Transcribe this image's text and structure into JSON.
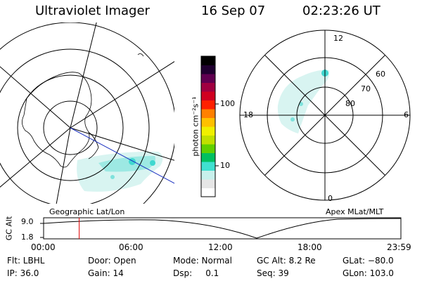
{
  "header": {
    "instrument": "Ultraviolet Imager",
    "date": "16 Sep 07",
    "time": "02:23:26 UT"
  },
  "colorbar": {
    "unit": "photon cm⁻²s⁻¹",
    "ticks": [
      "100",
      "10"
    ],
    "colors": [
      "#ffffff",
      "#e6e6e6",
      "#c8f0ec",
      "#40e0d0",
      "#00c060",
      "#60d000",
      "#c0e000",
      "#f0f000",
      "#ffc000",
      "#ff8000",
      "#ff2000",
      "#d00020",
      "#a00040",
      "#600050",
      "#200030",
      "#000000"
    ]
  },
  "left_map": {
    "label": "Geographic Lat/Lon"
  },
  "right_map": {
    "label": "Apex MLat/MLT",
    "mlt_labels": {
      "top": "12",
      "left": "18",
      "right": "6",
      "bottom": "0"
    },
    "lat_labels": [
      "60",
      "70",
      "80"
    ]
  },
  "altitude_plot": {
    "ylabel": "GC Alt",
    "ymax_label": "9.0",
    "ymin_label": "1.8",
    "x_ticks": [
      "00:00",
      "06:00",
      "12:00",
      "18:00",
      "23:59"
    ],
    "marker_time_hours": 2.39,
    "marker_color": "#e00000"
  },
  "info": {
    "row1": [
      "Flt: LBHL",
      "Door: Open",
      "Mode: Normal",
      "GC Alt: 8.2 Re",
      "GLat: −80.0"
    ],
    "row2": [
      "IP: 36.0",
      "Gain: 14",
      "Dsp:     0.1",
      "Seq: 39",
      "GLon: 103.0"
    ]
  }
}
